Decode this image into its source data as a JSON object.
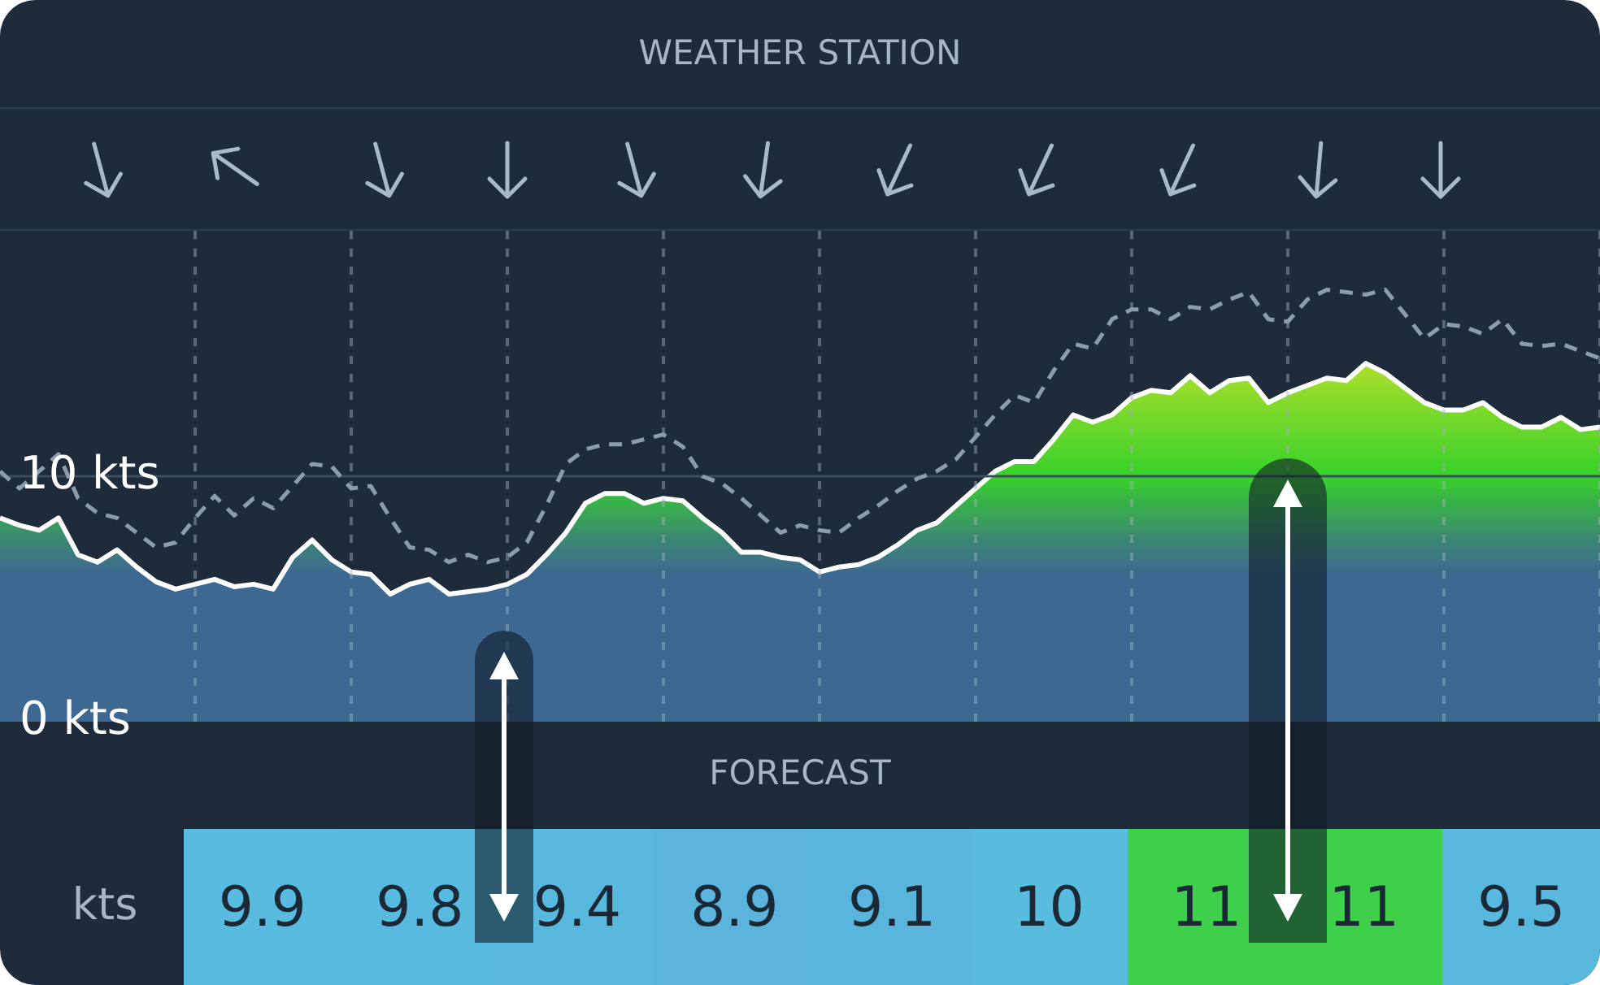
{
  "chart_data": [
    {
      "type": "area",
      "title": "WEATHER STATION",
      "categories": [
        null,
        null,
        null,
        null,
        null,
        null,
        null,
        null,
        null,
        null,
        null,
        null,
        null,
        null,
        null,
        null,
        null,
        null,
        null,
        null,
        null,
        null,
        null,
        null,
        null,
        null,
        null,
        null,
        null,
        null,
        null,
        null,
        null,
        null,
        null,
        null,
        null,
        null,
        null,
        null,
        null,
        null,
        null,
        null,
        null,
        null,
        null,
        null,
        null,
        null,
        null,
        null,
        null,
        null,
        null,
        null,
        null,
        null,
        null,
        null,
        null,
        null,
        null,
        null,
        null,
        null,
        null,
        null,
        null,
        null,
        null,
        null,
        null,
        null,
        null,
        null,
        null,
        null,
        null,
        null,
        null,
        null,
        null
      ],
      "ylim": [
        0,
        20
      ],
      "yticks": [
        {
          "value": 0,
          "label": "0 kts"
        },
        {
          "value": 10,
          "label": "10 kts"
        }
      ],
      "grid": "x",
      "ref_lines": [
        {
          "axis": "y",
          "value": 10,
          "color": "#3c4d5e",
          "line_style": "solid"
        }
      ],
      "series": [
        {
          "type": "area",
          "color": "#ffffff",
          "values": [
            8.3,
            8.0,
            7.8,
            8.3,
            6.8,
            6.5,
            7.0,
            6.3,
            5.7,
            5.4,
            5.6,
            5.8,
            5.5,
            5.6,
            5.4,
            6.7,
            7.4,
            6.6,
            6.1,
            6.0,
            5.2,
            5.6,
            5.8,
            5.2,
            5.3,
            5.4,
            5.6,
            6.0,
            6.8,
            7.7,
            8.9,
            9.3,
            9.3,
            8.9,
            9.1,
            9.0,
            8.3,
            7.7,
            6.9,
            6.9,
            6.7,
            6.6,
            6.1,
            6.3,
            6.4,
            6.7,
            7.2,
            7.8,
            8.1,
            8.8,
            9.5,
            10.2,
            10.6,
            10.6,
            11.5,
            12.5,
            12.2,
            12.5,
            13.2,
            13.5,
            13.4,
            14.1,
            13.4,
            13.9,
            14.0,
            13.0,
            13.4,
            13.7,
            14.0,
            13.9,
            14.6,
            14.2,
            13.6,
            13.0,
            12.7,
            12.7,
            13.0,
            12.4,
            12.0,
            12.0,
            12.4,
            11.9,
            12.0
          ]
        },
        {
          "type": "line",
          "color": "#8d9cad",
          "line_style": "dashed",
          "values": [
            10.2,
            9.5,
            10.2,
            10.9,
            9.1,
            8.5,
            8.3,
            7.7,
            7.1,
            7.3,
            8.3,
            9.2,
            8.4,
            9.1,
            8.7,
            9.6,
            10.5,
            10.4,
            9.5,
            9.6,
            8.3,
            7.1,
            7.0,
            6.5,
            6.8,
            6.5,
            6.7,
            7.3,
            8.8,
            10.5,
            11.1,
            11.3,
            11.3,
            11.5,
            11.7,
            11.2,
            10.0,
            9.7,
            9.1,
            8.4,
            7.7,
            8.0,
            7.8,
            7.7,
            8.3,
            8.8,
            9.4,
            9.9,
            10.2,
            10.7,
            11.6,
            12.5,
            13.3,
            13.0,
            14.3,
            15.4,
            15.2,
            16.4,
            16.8,
            16.8,
            16.4,
            16.9,
            16.8,
            17.2,
            17.5,
            16.4,
            16.3,
            17.2,
            17.6,
            17.5,
            17.4,
            17.6,
            16.6,
            15.6,
            16.2,
            16.1,
            15.8,
            16.4,
            15.4,
            15.3,
            15.4,
            15.1,
            14.8
          ]
        }
      ]
    },
    {
      "type": "heatmap",
      "title": "FORECAST",
      "categories": [
        null,
        null,
        null,
        null,
        null,
        null,
        null,
        null,
        null
      ],
      "y_categories": [
        "kts"
      ],
      "data_labels": true,
      "cells": [
        [
          9.9,
          9.8,
          9.4,
          8.9,
          9.1,
          10,
          11,
          11,
          9.5
        ]
      ]
    }
  ]
}
